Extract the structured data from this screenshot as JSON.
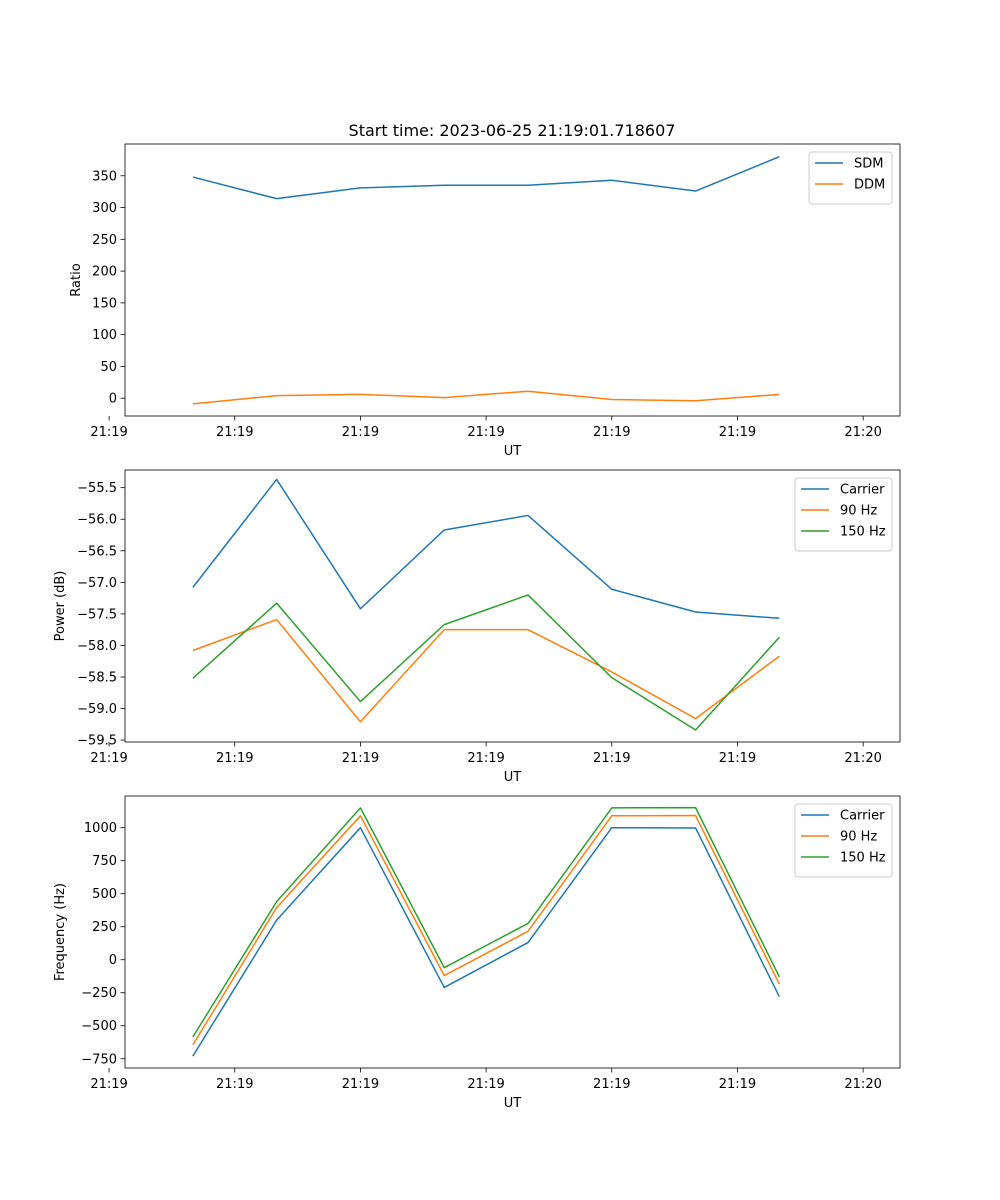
{
  "figure": {
    "title": "Start time: 2023-06-25 21:19:01.718607"
  },
  "chart_data": [
    {
      "type": "line",
      "title": "Start time: 2023-06-25 21:19:01.718607",
      "xlabel": "UT",
      "ylabel": "Ratio",
      "x": [
        1,
        2,
        3,
        4,
        5,
        6,
        7,
        8
      ],
      "xlim": [
        0.19,
        9.44
      ],
      "x_ticks": [
        0,
        1.5,
        3,
        4.5,
        6,
        7.5,
        9.0
      ],
      "x_tick_labels": [
        "21:19",
        "21:19",
        "21:19",
        "21:19",
        "21:19",
        "21:19",
        "21:20"
      ],
      "ylim": [
        -28,
        400
      ],
      "y_ticks": [
        0,
        50,
        100,
        150,
        200,
        250,
        300,
        350
      ],
      "y_tick_labels": [
        "0",
        "50",
        "100",
        "150",
        "200",
        "250",
        "300",
        "350"
      ],
      "grid": false,
      "legend": "top-right",
      "series": [
        {
          "name": "SDM",
          "color": "#1f77b4",
          "values": [
            348,
            314,
            331,
            335,
            335,
            343,
            326,
            380
          ]
        },
        {
          "name": "DDM",
          "color": "#ff7f0e",
          "values": [
            -9,
            4,
            6,
            1,
            11,
            -2,
            -4,
            6
          ]
        }
      ]
    },
    {
      "type": "line",
      "xlabel": "UT",
      "ylabel": "Power (dB)",
      "x": [
        1,
        2,
        3,
        4,
        5,
        6,
        7,
        8
      ],
      "xlim": [
        0.19,
        9.44
      ],
      "x_ticks": [
        0,
        1.5,
        3,
        4.5,
        6,
        7.5,
        9.0
      ],
      "x_tick_labels": [
        "21:19",
        "21:19",
        "21:19",
        "21:19",
        "21:19",
        "21:19",
        "21:20"
      ],
      "ylim": [
        -59.53,
        -55.22
      ],
      "y_ticks": [
        -59.5,
        -59.0,
        -58.5,
        -58.0,
        -57.5,
        -57.0,
        -56.5,
        -56.0,
        -55.5
      ],
      "y_tick_labels": [
        "−59.5",
        "−59.0",
        "−58.5",
        "−58.0",
        "−57.5",
        "−57.0",
        "−56.5",
        "−56.0",
        "−55.5"
      ],
      "grid": false,
      "legend": "top-right",
      "series": [
        {
          "name": "Carrier",
          "color": "#1f77b4",
          "values": [
            -57.08,
            -55.37,
            -57.42,
            -56.17,
            -55.94,
            -57.11,
            -57.47,
            -57.57
          ]
        },
        {
          "name": "90 Hz",
          "color": "#ff7f0e",
          "values": [
            -58.08,
            -57.59,
            -59.21,
            -57.75,
            -57.75,
            -58.42,
            -59.16,
            -58.17
          ]
        },
        {
          "name": "150 Hz",
          "color": "#2ca02c",
          "values": [
            -58.52,
            -57.33,
            -58.89,
            -57.67,
            -57.2,
            -58.51,
            -59.34,
            -57.87
          ]
        }
      ]
    },
    {
      "type": "line",
      "xlabel": "UT",
      "ylabel": "Frequency (Hz)",
      "x": [
        1,
        2,
        3,
        4,
        5,
        6,
        7,
        8
      ],
      "xlim": [
        0.19,
        9.44
      ],
      "x_ticks": [
        0,
        1.5,
        3,
        4.5,
        6,
        7.5,
        9.0
      ],
      "x_tick_labels": [
        "21:19",
        "21:19",
        "21:19",
        "21:19",
        "21:19",
        "21:19",
        "21:20"
      ],
      "ylim": [
        -820,
        1240
      ],
      "y_ticks": [
        -750,
        -500,
        -250,
        0,
        250,
        500,
        750,
        1000
      ],
      "y_tick_labels": [
        "−750",
        "−500",
        "−250",
        "0",
        "250",
        "500",
        "750",
        "1000"
      ],
      "grid": false,
      "legend": "top-right",
      "series": [
        {
          "name": "Carrier",
          "color": "#1f77b4",
          "values": [
            -730,
            300,
            1000,
            -210,
            130,
            1000,
            998,
            -280
          ]
        },
        {
          "name": "90 Hz",
          "color": "#ff7f0e",
          "values": [
            -645,
            395,
            1090,
            -120,
            215,
            1090,
            1092,
            -185
          ]
        },
        {
          "name": "150 Hz",
          "color": "#2ca02c",
          "values": [
            -585,
            440,
            1150,
            -60,
            275,
            1150,
            1152,
            -130
          ]
        }
      ]
    }
  ]
}
